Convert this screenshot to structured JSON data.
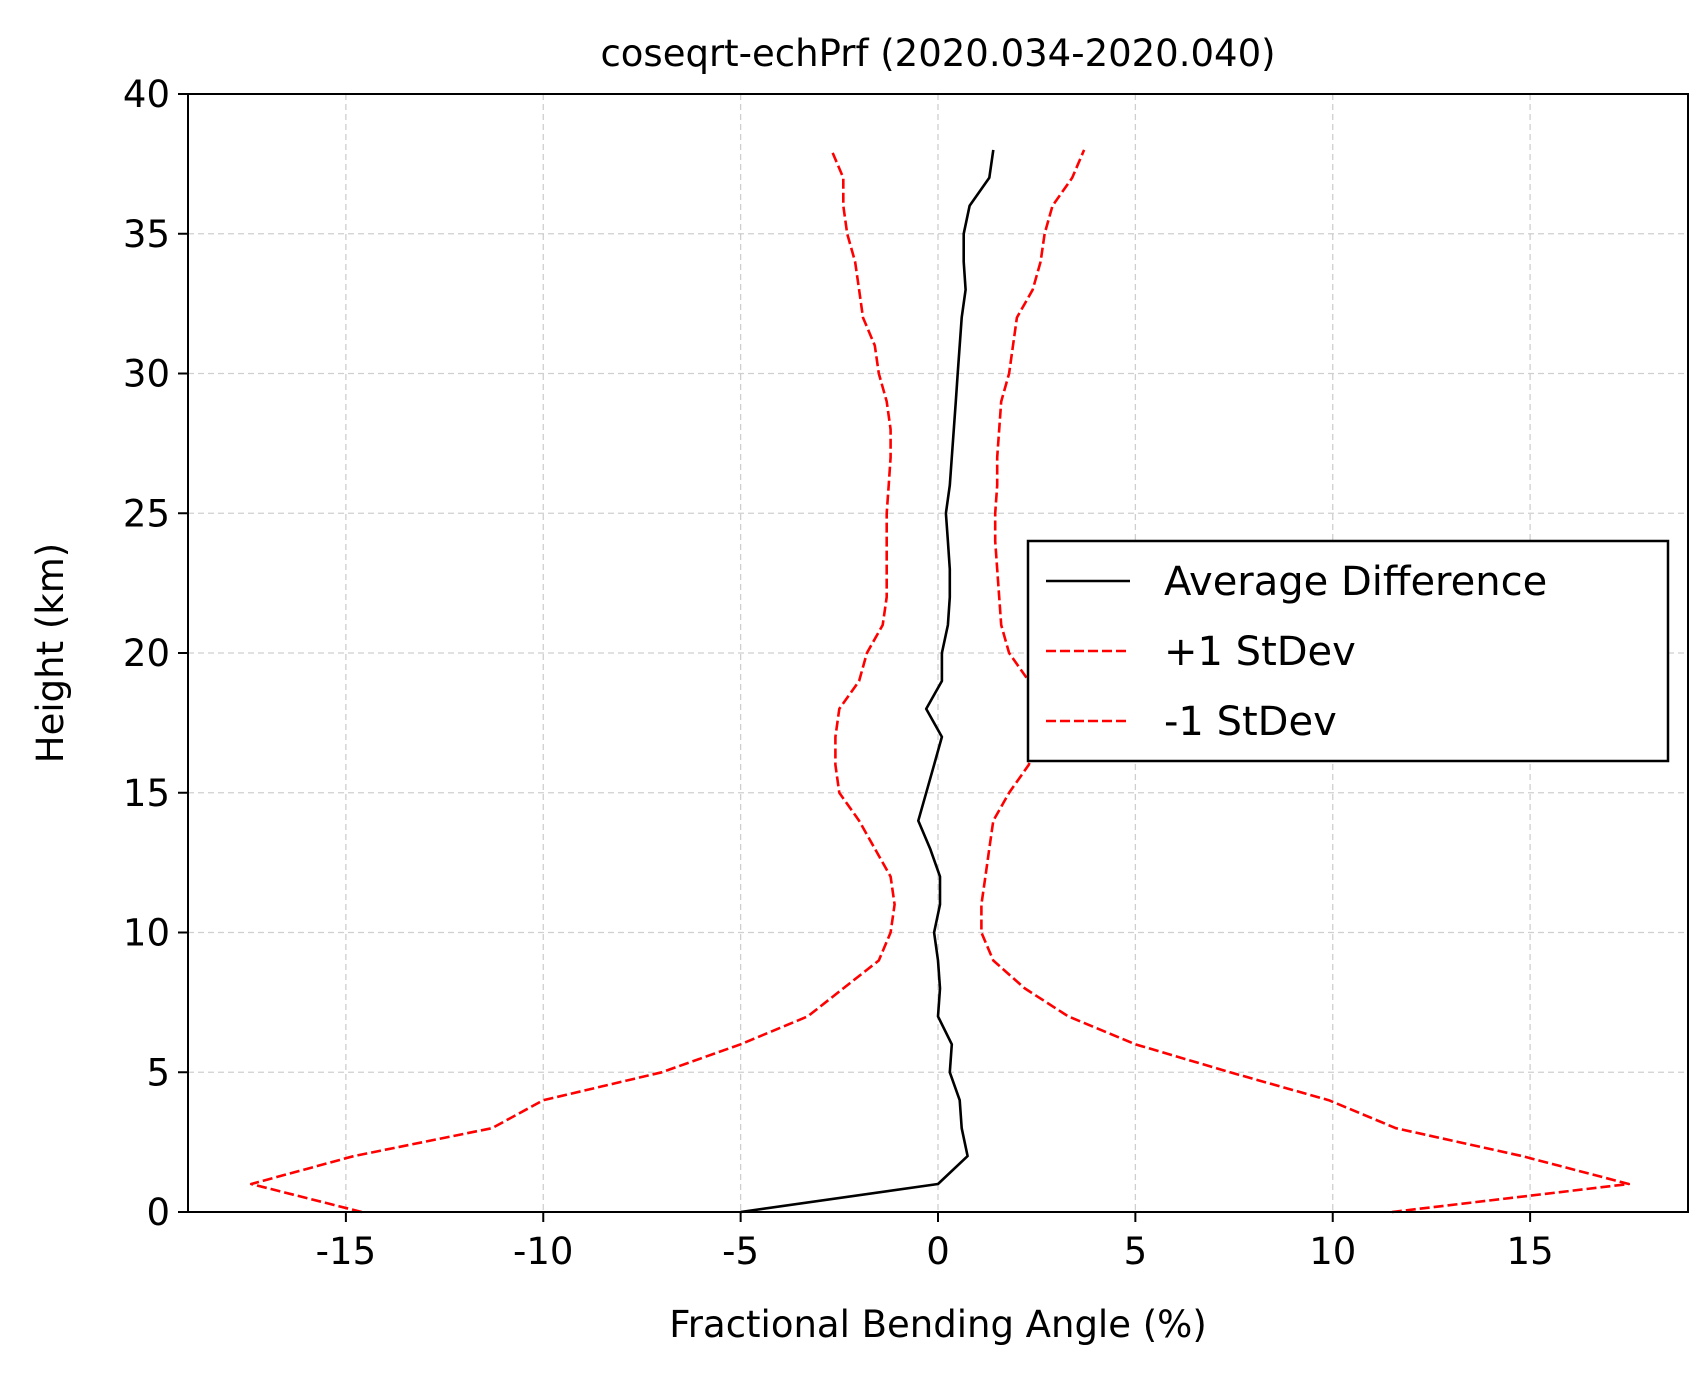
{
  "chart_data": {
    "type": "line",
    "title": "coseqrt-echPrf (2020.034-2020.040)",
    "xlabel": "Fractional Bending Angle (%)",
    "ylabel": "Height (km)",
    "xlim": [
      -19,
      19
    ],
    "ylim": [
      0,
      40
    ],
    "xticks": [
      -15,
      -10,
      -5,
      0,
      5,
      10,
      15
    ],
    "xtick_labels": [
      "-15",
      "-10",
      "-5",
      "0",
      "5",
      "10",
      "15"
    ],
    "yticks": [
      0,
      5,
      10,
      15,
      20,
      25,
      30,
      35,
      40
    ],
    "ytick_labels": [
      "0",
      "5",
      "10",
      "15",
      "20",
      "25",
      "30",
      "35",
      "40"
    ],
    "grid": true,
    "legend_position": "center-right",
    "series": [
      {
        "name": "Average Difference",
        "color": "#000000",
        "style": "solid",
        "points": [
          [
            -5.0,
            0
          ],
          [
            0.0,
            1
          ],
          [
            0.75,
            2
          ],
          [
            0.6,
            3
          ],
          [
            0.55,
            4
          ],
          [
            0.3,
            5
          ],
          [
            0.35,
            6
          ],
          [
            0.0,
            7
          ],
          [
            0.05,
            8
          ],
          [
            0.0,
            9
          ],
          [
            -0.1,
            10
          ],
          [
            0.05,
            11
          ],
          [
            0.05,
            12
          ],
          [
            -0.2,
            13
          ],
          [
            -0.5,
            14
          ],
          [
            -0.3,
            15
          ],
          [
            -0.1,
            16
          ],
          [
            0.1,
            17
          ],
          [
            -0.3,
            18
          ],
          [
            0.1,
            19
          ],
          [
            0.1,
            20
          ],
          [
            0.25,
            21
          ],
          [
            0.3,
            22
          ],
          [
            0.3,
            23
          ],
          [
            0.25,
            24
          ],
          [
            0.2,
            25
          ],
          [
            0.3,
            26
          ],
          [
            0.35,
            27
          ],
          [
            0.4,
            28
          ],
          [
            0.45,
            29
          ],
          [
            0.5,
            30
          ],
          [
            0.55,
            31
          ],
          [
            0.6,
            32
          ],
          [
            0.7,
            33
          ],
          [
            0.65,
            34
          ],
          [
            0.65,
            35
          ],
          [
            0.8,
            36
          ],
          [
            1.3,
            37
          ],
          [
            1.4,
            38
          ]
        ]
      },
      {
        "name": "+1 StDev",
        "color": "#ff0000",
        "style": "dashed",
        "points": [
          [
            11.5,
            0
          ],
          [
            17.5,
            1
          ],
          [
            14.8,
            2
          ],
          [
            11.6,
            3
          ],
          [
            9.9,
            4
          ],
          [
            7.4,
            5
          ],
          [
            5.0,
            6
          ],
          [
            3.3,
            7
          ],
          [
            2.2,
            8
          ],
          [
            1.4,
            9
          ],
          [
            1.1,
            10
          ],
          [
            1.1,
            11
          ],
          [
            1.2,
            12
          ],
          [
            1.3,
            13
          ],
          [
            1.4,
            14
          ],
          [
            1.8,
            15
          ],
          [
            2.3,
            16
          ],
          [
            2.5,
            17
          ],
          [
            2.5,
            18
          ],
          [
            2.3,
            19
          ],
          [
            1.8,
            20
          ],
          [
            1.6,
            21
          ],
          [
            1.55,
            22
          ],
          [
            1.5,
            23
          ],
          [
            1.45,
            24
          ],
          [
            1.45,
            25
          ],
          [
            1.5,
            26
          ],
          [
            1.5,
            27
          ],
          [
            1.55,
            28
          ],
          [
            1.6,
            29
          ],
          [
            1.8,
            30
          ],
          [
            1.9,
            31
          ],
          [
            2.0,
            32
          ],
          [
            2.4,
            33
          ],
          [
            2.6,
            34
          ],
          [
            2.7,
            35
          ],
          [
            2.9,
            36
          ],
          [
            3.4,
            37
          ],
          [
            3.7,
            38
          ]
        ]
      },
      {
        "name": "-1 StDev",
        "color": "#ff0000",
        "style": "dashed",
        "points": [
          [
            -14.6,
            0
          ],
          [
            -17.4,
            1
          ],
          [
            -14.8,
            2
          ],
          [
            -11.3,
            3
          ],
          [
            -10.0,
            4
          ],
          [
            -7.0,
            5
          ],
          [
            -5.0,
            6
          ],
          [
            -3.3,
            7
          ],
          [
            -2.4,
            8
          ],
          [
            -1.5,
            9
          ],
          [
            -1.2,
            10
          ],
          [
            -1.1,
            11
          ],
          [
            -1.2,
            12
          ],
          [
            -1.6,
            13
          ],
          [
            -2.0,
            14
          ],
          [
            -2.5,
            15
          ],
          [
            -2.6,
            16
          ],
          [
            -2.6,
            17
          ],
          [
            -2.5,
            18
          ],
          [
            -2.0,
            19
          ],
          [
            -1.8,
            20
          ],
          [
            -1.4,
            21
          ],
          [
            -1.3,
            22
          ],
          [
            -1.3,
            23
          ],
          [
            -1.3,
            24
          ],
          [
            -1.3,
            25
          ],
          [
            -1.25,
            26
          ],
          [
            -1.2,
            27
          ],
          [
            -1.2,
            28
          ],
          [
            -1.3,
            29
          ],
          [
            -1.5,
            30
          ],
          [
            -1.6,
            31
          ],
          [
            -1.9,
            32
          ],
          [
            -2.0,
            33
          ],
          [
            -2.1,
            34
          ],
          [
            -2.3,
            35
          ],
          [
            -2.4,
            36
          ],
          [
            -2.4,
            37
          ],
          [
            -2.7,
            38
          ]
        ]
      }
    ]
  }
}
